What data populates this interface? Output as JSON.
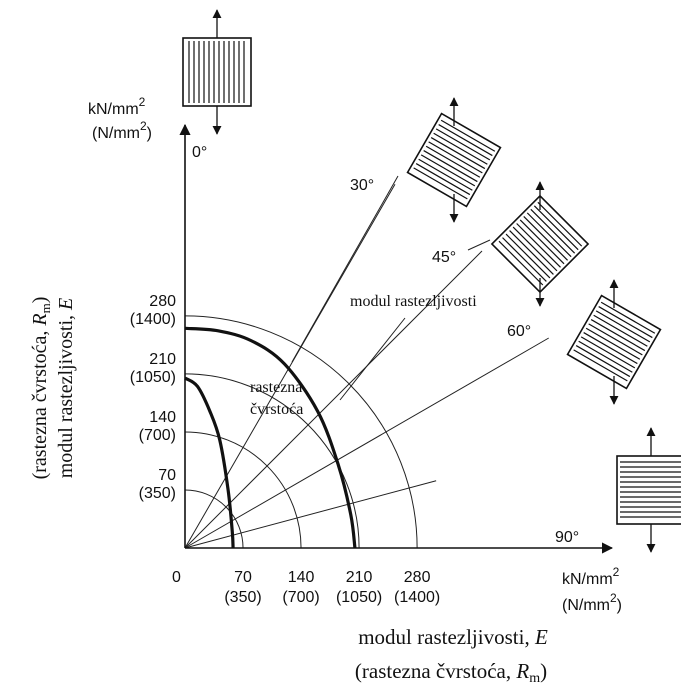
{
  "chart_data": {
    "type": "diagram",
    "y_axis": {
      "unit_top": "kN/mm",
      "unit_top_exp": "2",
      "unit_bottom_open": "(N/mm",
      "unit_bottom_exp": "2",
      "unit_bottom_close": ")",
      "angle_label": "0°",
      "title_line1": "(rastezna čvrstoća, ",
      "title_line1_sym": "R",
      "title_line1_sub": "m",
      "title_line1_close": ")",
      "title_line2": "modul rastezljivosti, ",
      "title_line2_sym": "E",
      "ticks": [
        {
          "value": 70,
          "main": "70",
          "sub": "(350)"
        },
        {
          "value": 140,
          "main": "140",
          "sub": "(700)"
        },
        {
          "value": 210,
          "main": "210",
          "sub": "(1050)"
        },
        {
          "value": 280,
          "main": "280",
          "sub": "(1400)"
        }
      ]
    },
    "x_axis": {
      "unit_top": "kN/mm",
      "unit_top_exp": "2",
      "unit_bottom_open": "(N/mm",
      "unit_bottom_exp": "2",
      "unit_bottom_close": ")",
      "angle_label": "90°",
      "origin": "0",
      "title_line1": "modul rastezljivosti, ",
      "title_line1_sym": "E",
      "title_line2": "(rastezna čvrstoća, ",
      "title_line2_sym": "R",
      "title_line2_sub": "m",
      "title_line2_close": ")",
      "ticks": [
        {
          "value": 70,
          "main": "70",
          "sub": "(350)"
        },
        {
          "value": 140,
          "main": "140",
          "sub": "(700)"
        },
        {
          "value": 210,
          "main": "210",
          "sub": "(1050)"
        },
        {
          "value": 280,
          "main": "280",
          "sub": "(1400)"
        }
      ]
    },
    "angle_labels": [
      {
        "deg": 30,
        "text": "30°"
      },
      {
        "deg": 45,
        "text": "45°"
      },
      {
        "deg": 60,
        "text": "60°"
      }
    ],
    "reference_arcs": [
      70,
      140,
      210,
      280
    ],
    "curves": [
      {
        "name": "modul rastezljivosti",
        "points": [
          [
            0,
            265
          ],
          [
            40,
            262
          ],
          [
            80,
            250
          ],
          [
            120,
            222
          ],
          [
            160,
            165
          ],
          [
            185,
            100
          ],
          [
            200,
            40
          ],
          [
            205,
            0
          ]
        ]
      },
      {
        "name": "rastezna čvrstoća",
        "points": [
          [
            0,
            205
          ],
          [
            15,
            195
          ],
          [
            30,
            165
          ],
          [
            42,
            130
          ],
          [
            52,
            70
          ],
          [
            57,
            20
          ],
          [
            58,
            0
          ]
        ]
      }
    ],
    "annotations": [
      {
        "text": "modul rastezljivosti"
      },
      {
        "line1": "rastezna",
        "line2": "čvrstoća"
      }
    ],
    "specimens": [
      {
        "angle": 0,
        "lines": "vertical"
      },
      {
        "angle": 30,
        "lines": "rotated"
      },
      {
        "angle": 45,
        "lines": "rotated"
      },
      {
        "angle": 60,
        "lines": "rotated"
      },
      {
        "angle": 90,
        "lines": "horizontal"
      }
    ]
  }
}
